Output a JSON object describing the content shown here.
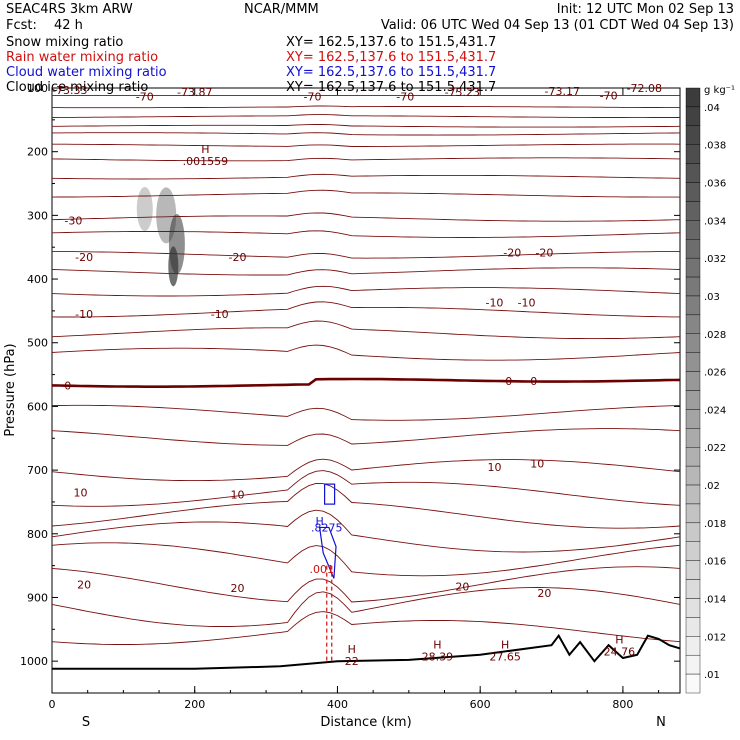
{
  "header": {
    "model": "SEAC4RS  3km ARW",
    "center": "NCAR/MMM",
    "init": "Init: 12 UTC Mon 02 Sep 13",
    "fcst_label": "Fcst:",
    "fcst_value": "42 h",
    "valid": "Valid: 06 UTC Wed 04 Sep 13 (01 CDT Wed 04 Sep 13)"
  },
  "fields": [
    {
      "name": "Snow mixing ratio",
      "xy": "XY= 162.5,137.6 to 151.5,431.7",
      "color": "#000000"
    },
    {
      "name": "Rain water mixing ratio",
      "xy": "XY= 162.5,137.6 to 151.5,431.7",
      "color": "#d01010"
    },
    {
      "name": "Cloud water mixing ratio",
      "xy": "XY= 162.5,137.6 to 151.5,431.7",
      "color": "#1010d0"
    },
    {
      "name": "Cloud ice mixing ratio",
      "xy": "XY= 162.5,137.6 to 151.5,431.7",
      "color": "#000000"
    }
  ],
  "colorbar": {
    "unit": "g kg⁻¹",
    "labels": [
      ".04",
      ".038",
      ".036",
      ".034",
      ".032",
      ".03",
      ".028",
      ".026",
      ".024",
      ".022",
      ".02",
      ".018",
      ".016",
      ".014",
      ".012",
      ".01"
    ]
  },
  "chart_data": {
    "type": "contour",
    "xlabel": "Distance (km)",
    "ylabel": "Pressure (hPa)",
    "xlim": [
      0,
      880
    ],
    "ylim": [
      1050,
      100
    ],
    "x_ticks": [
      0,
      200,
      400,
      600,
      800
    ],
    "x_tick_labels": [
      "0",
      "200",
      "400",
      "600",
      "800"
    ],
    "y_ticks": [
      100,
      200,
      300,
      400,
      500,
      600,
      700,
      800,
      900,
      1000
    ],
    "y_tick_labels": [
      "100",
      "200",
      "300",
      "400",
      "500",
      "600",
      "700",
      "800",
      "900",
      "1000"
    ],
    "left_end": "S",
    "right_end": "N",
    "temperature_contour_labels": [
      {
        "text": "-73.33",
        "x": 25,
        "p": 103
      },
      {
        "text": "-70",
        "x": 130,
        "p": 113
      },
      {
        "text": "-73.87",
        "x": 200,
        "p": 106
      },
      {
        "text": "-70",
        "x": 365,
        "p": 113
      },
      {
        "text": "-70",
        "x": 495,
        "p": 113
      },
      {
        "text": "-73.23",
        "x": 575,
        "p": 106
      },
      {
        "text": "-73.17",
        "x": 715,
        "p": 105
      },
      {
        "text": "-70",
        "x": 780,
        "p": 112
      },
      {
        "text": "-72.08",
        "x": 830,
        "p": 100
      },
      {
        "text": "-30",
        "x": 30,
        "p": 308
      },
      {
        "text": "-20",
        "x": 45,
        "p": 365
      },
      {
        "text": "-20",
        "x": 260,
        "p": 365
      },
      {
        "text": "-20",
        "x": 645,
        "p": 358
      },
      {
        "text": "-20",
        "x": 690,
        "p": 358
      },
      {
        "text": "-10",
        "x": 45,
        "p": 455
      },
      {
        "text": "-10",
        "x": 235,
        "p": 455
      },
      {
        "text": "-10",
        "x": 620,
        "p": 437
      },
      {
        "text": "-10",
        "x": 665,
        "p": 437
      },
      {
        "text": "0",
        "x": 22,
        "p": 567
      },
      {
        "text": "0",
        "x": 640,
        "p": 560
      },
      {
        "text": "0",
        "x": 675,
        "p": 560
      },
      {
        "text": "10",
        "x": 40,
        "p": 735
      },
      {
        "text": "10",
        "x": 260,
        "p": 738
      },
      {
        "text": "10",
        "x": 620,
        "p": 695
      },
      {
        "text": "10",
        "x": 680,
        "p": 690
      },
      {
        "text": "20",
        "x": 45,
        "p": 880
      },
      {
        "text": "20",
        "x": 260,
        "p": 885
      },
      {
        "text": "20",
        "x": 575,
        "p": 883
      },
      {
        "text": "20",
        "x": 690,
        "p": 893
      }
    ],
    "highs": [
      {
        "label": "H",
        "value": ".001559",
        "x": 215,
        "p": 215
      },
      {
        "label": "H",
        "value": "22",
        "x": 420,
        "p": 1000
      },
      {
        "label": "H",
        "value": "28.39",
        "x": 540,
        "p": 993
      },
      {
        "label": "H",
        "value": "27.65",
        "x": 635,
        "p": 993
      },
      {
        "label": "H",
        "value": "24.76",
        "x": 795,
        "p": 985
      }
    ],
    "cloud_water_labels": [
      {
        "text": "H",
        "x": 375,
        "p": 780
      },
      {
        "text": ".8275",
        "x": 385,
        "p": 790
      }
    ],
    "rain_labels": [
      {
        "text": ".001",
        "x": 378,
        "p": 855
      }
    ]
  }
}
